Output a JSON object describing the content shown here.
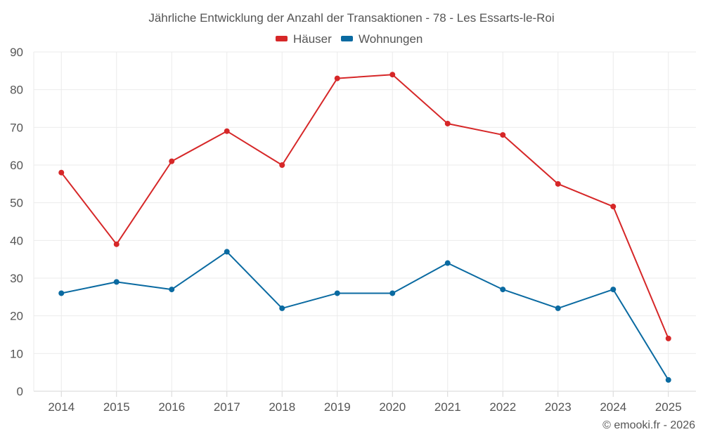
{
  "chart_data": {
    "type": "line",
    "title": "Jährliche Entwicklung der Anzahl der Transaktionen - 78 - Les Essarts-le-Roi",
    "categories": [
      "2014",
      "2015",
      "2016",
      "2017",
      "2018",
      "2019",
      "2020",
      "2021",
      "2022",
      "2023",
      "2024",
      "2025"
    ],
    "series": [
      {
        "name": "Häuser",
        "color": "#d62728",
        "values": [
          58,
          39,
          61,
          69,
          60,
          83,
          84,
          71,
          68,
          55,
          49,
          14
        ]
      },
      {
        "name": "Wohnungen",
        "color": "#0a6aa1",
        "values": [
          26,
          29,
          27,
          37,
          22,
          26,
          26,
          34,
          27,
          22,
          27,
          3
        ]
      }
    ],
    "ylim": [
      0,
      90
    ],
    "yticks": [
      0,
      10,
      20,
      30,
      40,
      50,
      60,
      70,
      80,
      90
    ],
    "xlabel": "",
    "ylabel": "",
    "grid": true,
    "legend": "top-center"
  },
  "credit": "© emooki.fr - 2026"
}
